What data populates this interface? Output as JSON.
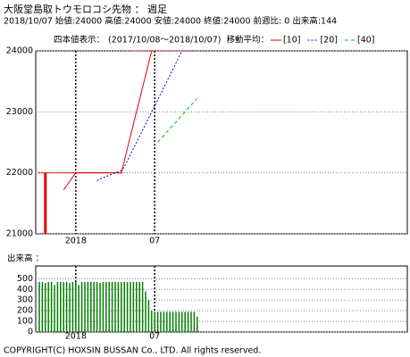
{
  "header": {
    "title": "大阪堂島取トウモロコシ先物 ： 週足",
    "info": "2018/10/07 始値:24000 高値:24000 安値:24000 終値:24000 前週比: 0 出来高:144"
  },
  "chart_data": [
    {
      "type": "candlestick",
      "label": "四本値表示：",
      "period": "(2017/10/08～2018/10/07)",
      "ma_label": "移動平均：",
      "color": "#e00000",
      "open": [
        22000,
        22000,
        22000,
        22000,
        22000,
        22000,
        22000,
        22000,
        22000,
        22000,
        22000,
        22000,
        22000,
        22000,
        22000,
        22000,
        22000,
        22000,
        22000,
        22000,
        22000,
        22000,
        22000,
        22000,
        22000,
        22000,
        22000,
        22000,
        24000,
        24000,
        24000,
        24000,
        24000,
        24000,
        24000,
        24000,
        24000,
        24000,
        24000,
        24000,
        24000,
        24000,
        24000,
        24000,
        24000,
        24000,
        24000,
        24000,
        24000,
        24000,
        24000,
        24000,
        24000
      ],
      "high": [
        22000,
        22000,
        22000,
        22000,
        22000,
        22000,
        22000,
        22000,
        22000,
        22000,
        22000,
        22000,
        22000,
        22000,
        22000,
        22000,
        22000,
        22000,
        22000,
        22000,
        22000,
        22000,
        22000,
        22000,
        22000,
        22000,
        22000,
        22000,
        24000,
        24000,
        24000,
        24000,
        24000,
        24000,
        24000,
        24000,
        24000,
        24000,
        24000,
        24000,
        24000,
        24000,
        24000,
        24000,
        24000,
        24000,
        24000,
        24000,
        24000,
        24000,
        24000,
        24000,
        24000
      ],
      "low": [
        22000,
        22000,
        21000,
        22000,
        22000,
        22000,
        22000,
        22000,
        22000,
        22000,
        22000,
        22000,
        22000,
        22000,
        22000,
        22000,
        22000,
        22000,
        22000,
        22000,
        22000,
        22000,
        22000,
        22000,
        22000,
        22000,
        22000,
        22000,
        24000,
        24000,
        24000,
        24000,
        24000,
        24000,
        24000,
        24000,
        24000,
        24000,
        24000,
        24000,
        24000,
        24000,
        24000,
        24000,
        24000,
        24000,
        24000,
        24000,
        24000,
        24000,
        24000,
        24000,
        24000
      ],
      "close": [
        22000,
        22000,
        22000,
        22000,
        22000,
        22000,
        22000,
        22000,
        22000,
        22000,
        22000,
        22000,
        22000,
        22000,
        22000,
        22000,
        22000,
        22000,
        22000,
        22000,
        22000,
        22000,
        22000,
        22000,
        22000,
        22000,
        22000,
        22000,
        24000,
        24000,
        24000,
        24000,
        24000,
        24000,
        24000,
        24000,
        24000,
        24000,
        24000,
        24000,
        24000,
        24000,
        24000,
        24000,
        24000,
        24000,
        24000,
        24000,
        24000,
        24000,
        24000,
        24000,
        24000
      ],
      "series": [
        {
          "name": "[10]",
          "color": "#e00000",
          "dash": "solid",
          "values": [
            null,
            null,
            null,
            null,
            null,
            null,
            null,
            null,
            21720,
            21790,
            21860,
            21930,
            22000,
            22000,
            22000,
            22000,
            22000,
            22000,
            22000,
            22000,
            22000,
            22000,
            22000,
            22000,
            22000,
            22000,
            22000,
            22000,
            22200,
            22400,
            22600,
            22800,
            23000,
            23200,
            23400,
            23600,
            23800,
            24000,
            24000,
            24000,
            24000,
            24000,
            24000,
            24000,
            24000,
            24000,
            24000,
            24000,
            24000,
            24000,
            24000,
            24000,
            24000
          ]
        },
        {
          "name": "[20]",
          "color": "#0000e0",
          "dash": "dotted",
          "values": [
            null,
            null,
            null,
            null,
            null,
            null,
            null,
            null,
            null,
            null,
            null,
            null,
            null,
            null,
            null,
            null,
            null,
            null,
            null,
            21870,
            21900,
            21920,
            21940,
            21960,
            21980,
            22000,
            22020,
            22040,
            22100,
            22200,
            22300,
            22400,
            22500,
            22600,
            22700,
            22800,
            22900,
            23000,
            23100,
            23200,
            23300,
            23400,
            23500,
            23600,
            23700,
            23800,
            23900,
            24000,
            24000,
            24000,
            24000,
            24000,
            24000
          ]
        },
        {
          "name": "[40]",
          "color": "#00c000",
          "dash": "dashed",
          "values": [
            null,
            null,
            null,
            null,
            null,
            null,
            null,
            null,
            null,
            null,
            null,
            null,
            null,
            null,
            null,
            null,
            null,
            null,
            null,
            null,
            null,
            null,
            null,
            null,
            null,
            null,
            null,
            null,
            null,
            null,
            null,
            null,
            null,
            null,
            null,
            null,
            null,
            null,
            null,
            22500,
            22560,
            22610,
            22670,
            22720,
            22780,
            22830,
            22890,
            22940,
            23000,
            23060,
            23110,
            23170,
            23220
          ]
        }
      ],
      "ylim": [
        21000,
        24000
      ],
      "yticks": [
        21000,
        22000,
        23000,
        24000
      ],
      "grid": true,
      "xticks": [
        {
          "value": 12,
          "label": "2018"
        },
        {
          "value": 38,
          "label": "07"
        }
      ]
    },
    {
      "type": "bar",
      "label": "出来高 ：",
      "color": "#008000",
      "values": [
        470,
        470,
        460,
        470,
        470,
        440,
        470,
        470,
        470,
        470,
        460,
        470,
        470,
        440,
        470,
        470,
        470,
        470,
        470,
        470,
        460,
        470,
        470,
        470,
        470,
        470,
        470,
        470,
        470,
        470,
        470,
        470,
        470,
        470,
        470,
        380,
        300,
        200,
        190,
        190,
        190,
        190,
        190,
        190,
        190,
        190,
        190,
        190,
        190,
        190,
        190,
        190,
        144
      ],
      "ylim": [
        0,
        620
      ],
      "yticks": [
        0,
        100,
        200,
        300,
        400,
        500
      ],
      "grid": true,
      "xticks": [
        {
          "value": 12,
          "label": "2018"
        },
        {
          "value": 38,
          "label": "07"
        }
      ]
    }
  ],
  "footer": "COPYRIGHT(C) HOXSIN BUSSAN Co., LTD. All rights reserved."
}
